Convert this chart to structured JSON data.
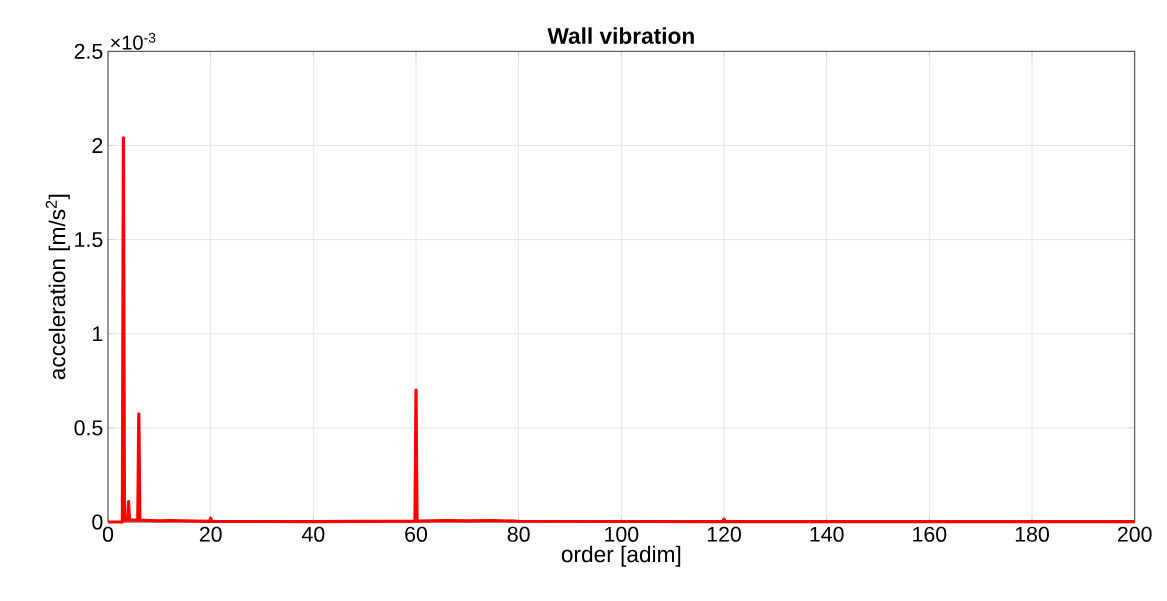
{
  "chart_data": {
    "type": "line",
    "title": "**Wall vibration**",
    "xlabel": "order [adim]",
    "ylabel": "acceleration [m/s$^{2}$]",
    "annotations": [
      "×10$^{-3}$"
    ],
    "x": [
      0,
      2.8,
      3,
      3.2,
      3.8,
      4,
      4.2,
      5.8,
      6,
      6.2,
      8,
      10,
      12,
      19.8,
      20,
      20.2,
      40,
      59.8,
      60,
      60.2,
      66,
      70,
      75,
      80,
      119.8,
      120,
      120.2,
      200
    ],
    "series": [
      {
        "color": "#ff0000",
        "values": [
          0,
          0,
          2.04,
          0.01,
          0.01,
          0.108,
          0.01,
          0.01,
          0.575,
          0.01,
          0.008,
          0.006,
          0.008,
          0.003,
          0.02,
          0.003,
          0.002,
          0.005,
          0.7,
          0.005,
          0.008,
          0.006,
          0.008,
          0.004,
          0.002,
          0.015,
          0.002,
          0.002
        ]
      }
    ],
    "xlim": [
      0,
      200
    ],
    "ylim": [
      0,
      2.5
    ],
    "xticks": [
      0,
      20,
      40,
      60,
      80,
      100,
      120,
      140,
      160,
      180,
      200
    ],
    "yticks": [
      0,
      0.5,
      1,
      1.5,
      2,
      2.5
    ],
    "grid": true,
    "marker": "none",
    "line_style": "solid"
  }
}
